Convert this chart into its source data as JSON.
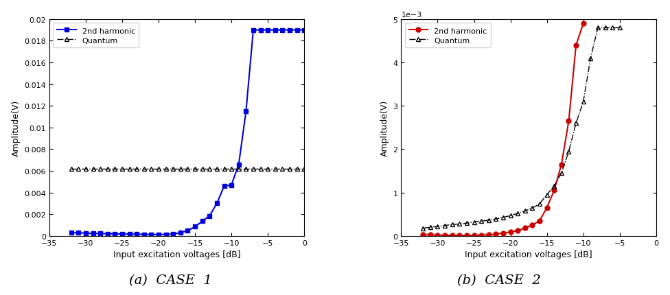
{
  "case1": {
    "harmonic_x": [
      -32,
      -31,
      -30,
      -29,
      -28,
      -27,
      -26,
      -25,
      -24,
      -23,
      -22,
      -21,
      -20,
      -19,
      -18,
      -17,
      -16,
      -15,
      -14,
      -13,
      -12,
      -11,
      -10,
      -9,
      -8,
      -7,
      -6,
      -5,
      -4,
      -3,
      -2,
      -1,
      0
    ],
    "harmonic_y": [
      0.0003,
      0.00028,
      0.00025,
      0.00022,
      0.00022,
      0.0002,
      0.00018,
      0.00018,
      0.00016,
      0.00016,
      0.00014,
      0.00013,
      0.00013,
      0.00014,
      0.00018,
      0.00028,
      0.00048,
      0.00085,
      0.00135,
      0.00185,
      0.003,
      0.0046,
      0.0047,
      0.0066,
      0.0115,
      0.019,
      0.019,
      0.019,
      0.019,
      0.019,
      0.019,
      0.019,
      0.019
    ],
    "quantum_x": [
      -32,
      -31,
      -30,
      -29,
      -28,
      -27,
      -26,
      -25,
      -24,
      -23,
      -22,
      -21,
      -20,
      -19,
      -18,
      -17,
      -16,
      -15,
      -14,
      -13,
      -12,
      -11,
      -10,
      -9,
      -8,
      -7,
      -6,
      -5,
      -4,
      -3,
      -2,
      -1,
      0
    ],
    "quantum_y": [
      0.0062,
      0.0062,
      0.0062,
      0.0062,
      0.0062,
      0.0062,
      0.0062,
      0.0062,
      0.0062,
      0.0062,
      0.0062,
      0.0062,
      0.0062,
      0.0062,
      0.0062,
      0.0062,
      0.0062,
      0.0062,
      0.0062,
      0.0062,
      0.0062,
      0.0062,
      0.0062,
      0.0062,
      0.0062,
      0.0062,
      0.0062,
      0.0062,
      0.0062,
      0.0062,
      0.0062,
      0.0062,
      0.0062
    ],
    "harmonic_color": "#0000dd",
    "quantum_color": "#000000",
    "ylabel": "Amplitude(V)",
    "xlabel": "Input excitation voltages [dB]",
    "ylim": [
      0,
      0.02
    ],
    "xlim": [
      -35,
      0
    ],
    "yticks": [
      0,
      0.002,
      0.004,
      0.006,
      0.008,
      0.01,
      0.012,
      0.014,
      0.016,
      0.018,
      0.02
    ],
    "xticks": [
      -35,
      -30,
      -25,
      -20,
      -15,
      -10,
      -5,
      0
    ],
    "caption": "(a)  CASE  1"
  },
  "case2": {
    "harmonic_x": [
      -32,
      -31,
      -30,
      -29,
      -28,
      -27,
      -26,
      -25,
      -24,
      -23,
      -22,
      -21,
      -20,
      -19,
      -18,
      -17,
      -16,
      -15,
      -14,
      -13,
      -12,
      -11,
      -10
    ],
    "harmonic_y": [
      2.5e-05,
      2.5e-05,
      2e-05,
      1.5e-05,
      1.2e-05,
      1e-05,
      1e-05,
      1.2e-05,
      1.8e-05,
      2.5e-05,
      4e-05,
      6.5e-05,
      9e-05,
      0.00012,
      0.00018,
      0.00025,
      0.00035,
      0.00065,
      0.00105,
      0.00165,
      0.00265,
      0.0044,
      0.0049
    ],
    "quantum_x": [
      -32,
      -31,
      -30,
      -29,
      -28,
      -27,
      -26,
      -25,
      -24,
      -23,
      -22,
      -21,
      -20,
      -19,
      -18,
      -17,
      -16,
      -15,
      -14,
      -13,
      -12,
      -11,
      -10,
      -9,
      -8,
      -7,
      -6,
      -5
    ],
    "quantum_y": [
      0.000175,
      0.0002,
      0.000215,
      0.00024,
      0.00026,
      0.000275,
      0.000295,
      0.00032,
      0.00034,
      0.00036,
      0.00039,
      0.000425,
      0.00047,
      0.00052,
      0.000575,
      0.00064,
      0.00074,
      0.00095,
      0.00115,
      0.00145,
      0.00195,
      0.0026,
      0.0031,
      0.0041,
      0.0048,
      0.0048,
      0.0048,
      0.0048
    ],
    "harmonic_color": "#cc0000",
    "quantum_color": "#000000",
    "ylabel": "Amplitude(V)",
    "xlabel": "Input excitation voltages [dB]",
    "ylim": [
      0,
      0.005
    ],
    "xlim": [
      -35,
      0
    ],
    "yticks": [
      0,
      0.0005,
      0.001,
      0.0015,
      0.002,
      0.0025,
      0.003,
      0.0035,
      0.004,
      0.0045,
      0.005
    ],
    "xticks": [
      -35,
      -30,
      -25,
      -20,
      -15,
      -10,
      -5,
      0
    ],
    "caption": "(b)  CASE  2"
  },
  "bg_color": "#ffffff",
  "fig_width": 9.76,
  "fig_height": 4.31
}
